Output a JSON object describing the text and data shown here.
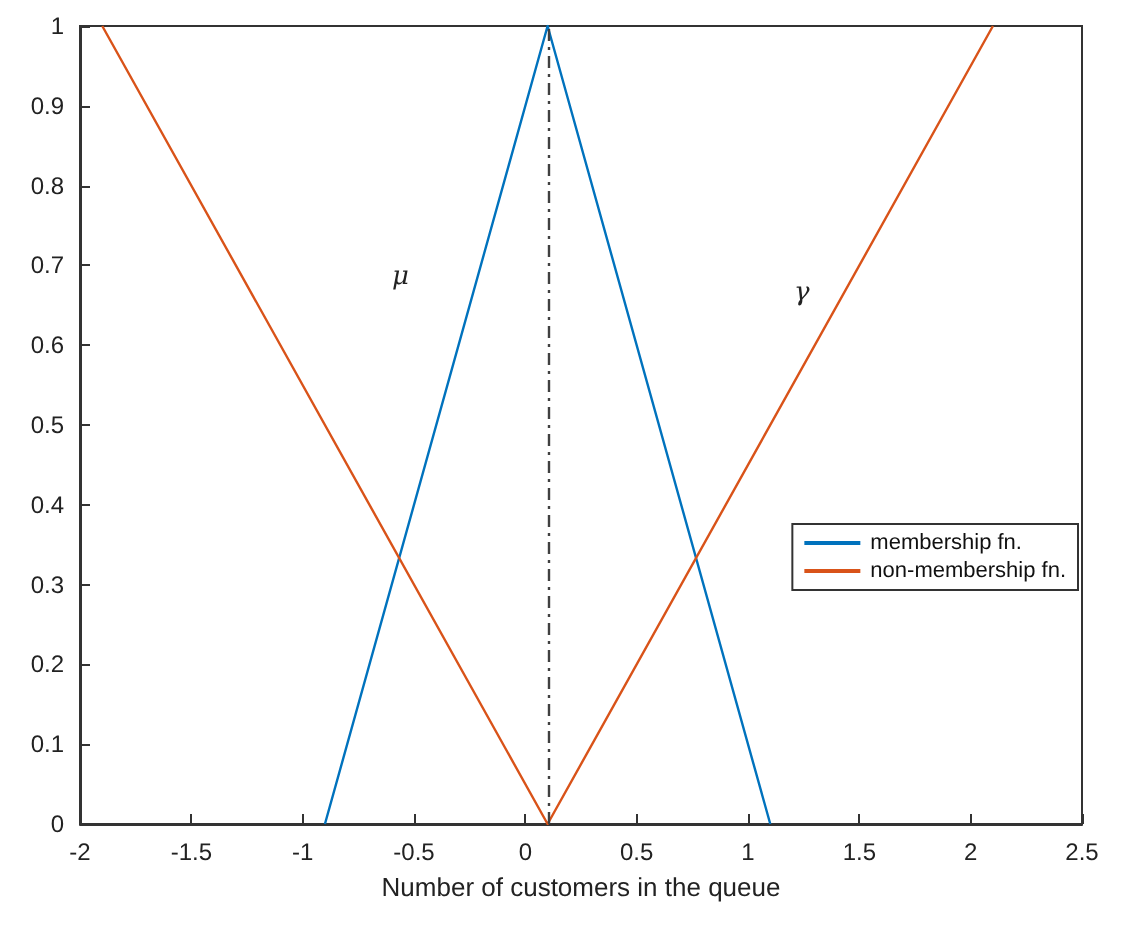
{
  "chart_data": {
    "type": "line",
    "xlabel": "Number of customers in the queue",
    "series": [
      {
        "name": "membership fn.",
        "color": "#0072bd",
        "x": [
          -0.9,
          0.1,
          1.1
        ],
        "values": [
          0,
          1,
          0
        ]
      },
      {
        "name": "non-membership fn.",
        "color": "#d95319",
        "x": [
          -1.9,
          0.1,
          2.1
        ],
        "values": [
          1,
          0,
          1
        ]
      }
    ],
    "xlim": [
      -2,
      2.5
    ],
    "xticks": [
      -2,
      -1.5,
      -1,
      -0.5,
      0,
      0.5,
      1,
      1.5,
      2,
      2.5
    ],
    "ylim": [
      0,
      1
    ],
    "yticks": [
      0,
      0.1,
      0.2,
      0.3,
      0.4,
      0.5,
      0.6,
      0.7,
      0.8,
      0.9,
      1
    ],
    "ref_lines": [
      {
        "axis": "x",
        "value": 0.1,
        "label": null,
        "color": "#404040",
        "line_style": "dashed"
      }
    ],
    "annotations": [
      "μ",
      "γ"
    ],
    "grid": false,
    "legend": "right",
    "marker": "none",
    "line_style": "solid"
  }
}
